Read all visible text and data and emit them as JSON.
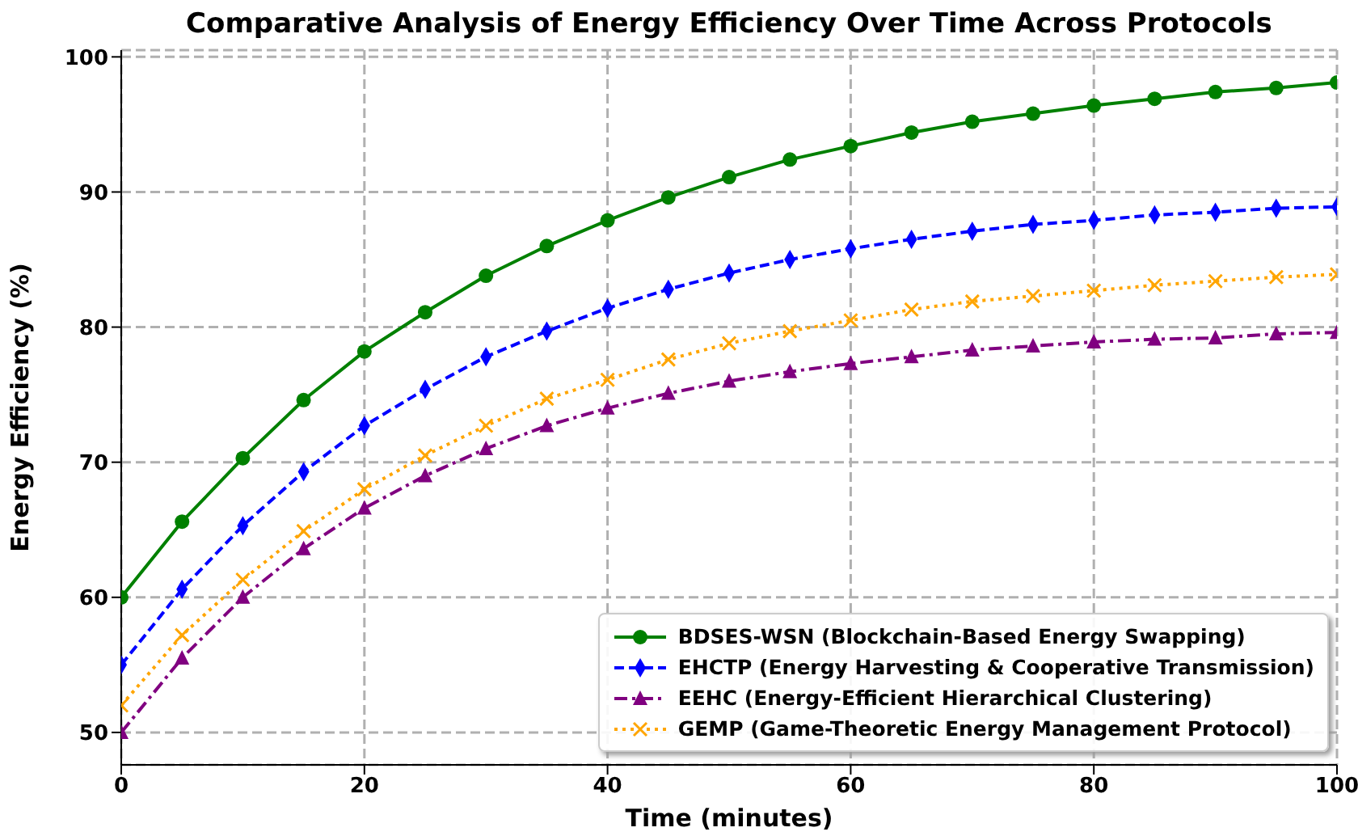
{
  "chart_data": {
    "type": "line",
    "title": "Comparative Analysis of Energy Efficiency Over Time Across Protocols",
    "xlabel": "Time (minutes)",
    "ylabel": "Energy Efficiency (%)",
    "x": [
      0,
      5,
      10,
      15,
      20,
      25,
      30,
      35,
      40,
      45,
      50,
      55,
      60,
      65,
      70,
      75,
      80,
      85,
      90,
      95,
      100
    ],
    "xlim": [
      0,
      100
    ],
    "xticks": [
      0,
      20,
      40,
      60,
      80,
      100
    ],
    "ylim": [
      47.6,
      100.5
    ],
    "yticks": [
      50,
      60,
      70,
      80,
      90,
      100
    ],
    "grid": true,
    "legend": "bottom right",
    "series": [
      {
        "name": "BDSES-WSN (Blockchain-Based Energy Swapping)",
        "color": "#008000",
        "marker": "circle",
        "line_style": "solid",
        "values": [
          60,
          65.6,
          70.3,
          74.6,
          78.2,
          81.1,
          83.8,
          86.0,
          87.9,
          89.6,
          91.1,
          92.4,
          93.4,
          94.4,
          95.2,
          95.8,
          96.4,
          96.9,
          97.4,
          97.7,
          98.1
        ]
      },
      {
        "name": "EHCTP (Energy Harvesting & Cooperative Transmission)",
        "color": "#0000ff",
        "marker": "diamond",
        "line_style": "dashed",
        "values": [
          55.0,
          60.6,
          65.3,
          69.3,
          72.7,
          75.4,
          77.8,
          79.7,
          81.4,
          82.8,
          84.0,
          85.0,
          85.8,
          86.5,
          87.1,
          87.6,
          87.9,
          88.3,
          88.5,
          88.8,
          88.9
        ]
      },
      {
        "name": "EEHC (Energy-Efficient Hierarchical Clustering)",
        "color": "#800080",
        "marker": "triangle",
        "line_style": "dashdot",
        "values": [
          50,
          55.5,
          60,
          63.6,
          66.6,
          69.0,
          71.0,
          72.7,
          74.0,
          75.1,
          76.0,
          76.7,
          77.3,
          77.8,
          78.3,
          78.6,
          78.9,
          79.1,
          79.2,
          79.5,
          79.6
        ]
      },
      {
        "name": "GEMP (Game-Theoretic Energy Management Protocol)",
        "color": "#ffa500",
        "marker": "cross",
        "line_style": "dotted",
        "values": [
          52.0,
          57.2,
          61.3,
          64.9,
          68.0,
          70.5,
          72.7,
          74.7,
          76.1,
          77.6,
          78.8,
          79.7,
          80.5,
          81.3,
          81.9,
          82.3,
          82.7,
          83.1,
          83.4,
          83.7,
          83.9
        ]
      }
    ]
  }
}
